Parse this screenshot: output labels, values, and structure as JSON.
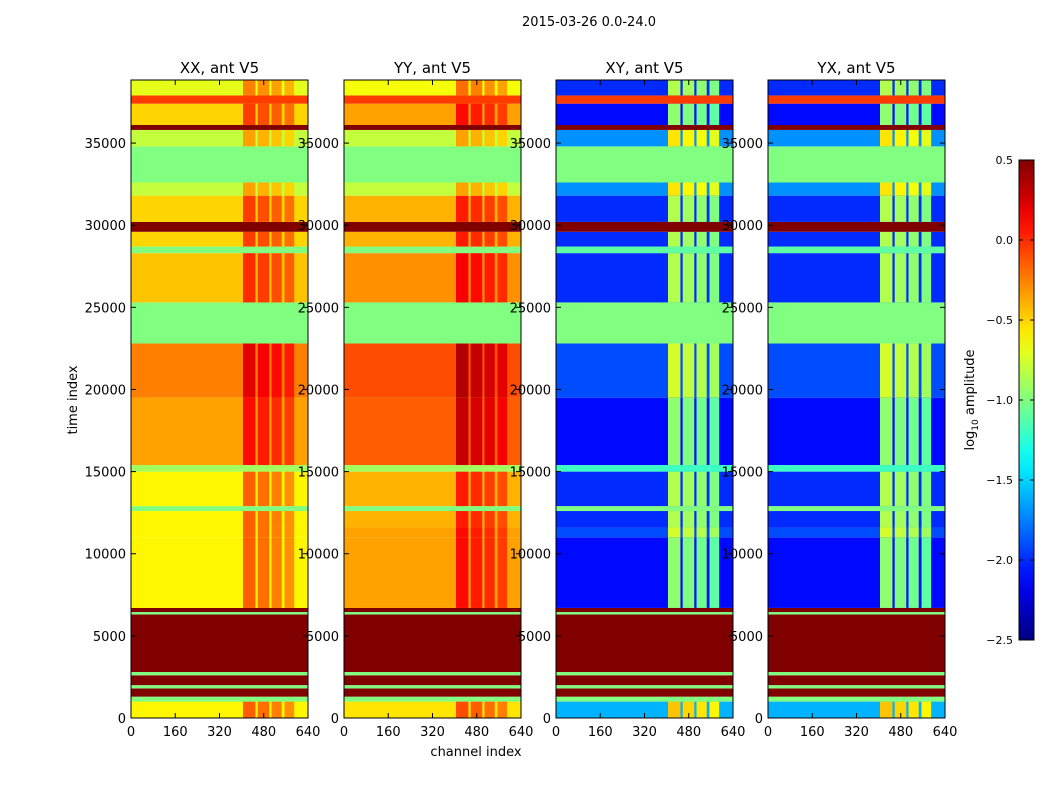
{
  "chart_data": {
    "type": "heatmap",
    "title": "2015-03-26 0.0-24.0",
    "xlabel": "channel index",
    "ylabel": "time index",
    "xlim": [
      0,
      640
    ],
    "ylim": [
      0,
      38840
    ],
    "xticks": [
      0,
      160,
      320,
      480,
      640
    ],
    "yticks": [
      0,
      5000,
      10000,
      15000,
      20000,
      25000,
      30000,
      35000
    ],
    "panels": [
      "XX, ant V5",
      "YY, ant V5",
      "XY, ant V5",
      "YX, ant V5"
    ],
    "colorbar": {
      "label_main": "log",
      "label_sub": "10",
      "label_rest": " amplitude",
      "range": [
        -2.5,
        0.5
      ],
      "ticks": [
        0.5,
        0.0,
        -0.5,
        -1.0,
        -1.5,
        -2.0,
        -2.5
      ],
      "tick_labels": [
        "0.5",
        "0.0",
        "−0.5",
        "−1.0",
        "−1.5",
        "−2.0",
        "−2.5"
      ],
      "colormap": "jet"
    },
    "rfi_channels": [
      [
        405,
        450
      ],
      [
        458,
        500
      ],
      [
        508,
        545
      ],
      [
        555,
        590
      ]
    ],
    "bands_note": "each band: time start, time end, log10 amplitude per panel [XX, YY, XY, YX], whether RFI channels are elevated",
    "bands": [
      {
        "t": [
          0,
          1000
        ],
        "v": [
          -0.6,
          -0.55,
          -1.6,
          -1.6
        ],
        "rfi": true
      },
      {
        "t": [
          1000,
          1300
        ],
        "v": [
          -1.0,
          -1.0,
          -1.0,
          -1.0
        ],
        "rfi": false
      },
      {
        "t": [
          1300,
          1800
        ],
        "v": [
          0.5,
          0.5,
          0.5,
          0.5
        ],
        "rfi": false
      },
      {
        "t": [
          1800,
          2000
        ],
        "v": [
          -1.0,
          -1.0,
          -1.0,
          -1.0
        ],
        "rfi": false
      },
      {
        "t": [
          2000,
          2600
        ],
        "v": [
          0.5,
          0.5,
          0.5,
          0.5
        ],
        "rfi": false
      },
      {
        "t": [
          2600,
          2800
        ],
        "v": [
          -1.0,
          -1.0,
          -1.0,
          -1.0
        ],
        "rfi": false
      },
      {
        "t": [
          2800,
          6300
        ],
        "v": [
          0.5,
          0.5,
          0.5,
          0.5
        ],
        "rfi": false
      },
      {
        "t": [
          6300,
          6450
        ],
        "v": [
          -1.0,
          -1.0,
          -1.0,
          -1.0
        ],
        "rfi": false
      },
      {
        "t": [
          6450,
          6700
        ],
        "v": [
          0.5,
          0.5,
          0.5,
          0.5
        ],
        "rfi": false
      },
      {
        "t": [
          6700,
          11000
        ],
        "v": [
          -0.6,
          -0.35,
          -2.1,
          -2.1
        ],
        "rfi": true
      },
      {
        "t": [
          11000,
          11600
        ],
        "v": [
          -0.6,
          -0.35,
          -1.9,
          -1.9
        ],
        "rfi": true
      },
      {
        "t": [
          11600,
          12600
        ],
        "v": [
          -0.6,
          -0.4,
          -2.0,
          -2.0
        ],
        "rfi": true
      },
      {
        "t": [
          12600,
          12900
        ],
        "v": [
          -1.0,
          -1.0,
          -1.0,
          -1.0
        ],
        "rfi": false
      },
      {
        "t": [
          12900,
          15000
        ],
        "v": [
          -0.6,
          -0.4,
          -2.0,
          -2.0
        ],
        "rfi": true
      },
      {
        "t": [
          15000,
          15400
        ],
        "v": [
          -0.9,
          -0.9,
          -1.2,
          -1.2
        ],
        "rfi": false
      },
      {
        "t": [
          15400,
          19500
        ],
        "v": [
          -0.35,
          -0.15,
          -2.1,
          -2.1
        ],
        "rfi": true
      },
      {
        "t": [
          19500,
          22800
        ],
        "v": [
          -0.25,
          -0.1,
          -1.9,
          -1.9
        ],
        "rfi": true
      },
      {
        "t": [
          22800,
          25300
        ],
        "v": [
          -1.0,
          -1.0,
          -1.0,
          -1.0
        ],
        "rfi": false
      },
      {
        "t": [
          25300,
          28300
        ],
        "v": [
          -0.45,
          -0.3,
          -2.0,
          -2.0
        ],
        "rfi": true
      },
      {
        "t": [
          28300,
          28700
        ],
        "v": [
          -1.0,
          -1.0,
          -1.1,
          -1.1
        ],
        "rfi": false
      },
      {
        "t": [
          28700,
          29600
        ],
        "v": [
          -0.5,
          -0.4,
          -2.0,
          -2.0
        ],
        "rfi": true
      },
      {
        "t": [
          29600,
          30200
        ],
        "v": [
          0.5,
          0.5,
          0.5,
          0.5
        ],
        "rfi": false
      },
      {
        "t": [
          30200,
          31800
        ],
        "v": [
          -0.5,
          -0.4,
          -2.0,
          -2.0
        ],
        "rfi": true
      },
      {
        "t": [
          31800,
          32600
        ],
        "v": [
          -0.8,
          -0.8,
          -1.7,
          -1.7
        ],
        "rfi": true
      },
      {
        "t": [
          32600,
          34800
        ],
        "v": [
          -1.0,
          -1.0,
          -1.0,
          -1.0
        ],
        "rfi": false
      },
      {
        "t": [
          34800,
          35800
        ],
        "v": [
          -0.8,
          -0.8,
          -1.7,
          -1.7
        ],
        "rfi": true
      },
      {
        "t": [
          35800,
          36100
        ],
        "v": [
          0.5,
          0.5,
          0.5,
          0.5
        ],
        "rfi": false
      },
      {
        "t": [
          36100,
          37400
        ],
        "v": [
          -0.5,
          -0.35,
          -2.1,
          -2.1
        ],
        "rfi": true
      },
      {
        "t": [
          37400,
          37900
        ],
        "v": [
          -0.05,
          -0.05,
          -0.05,
          -0.05
        ],
        "rfi": false
      },
      {
        "t": [
          37900,
          38840
        ],
        "v": [
          -0.7,
          -0.65,
          -2.0,
          -2.0
        ],
        "rfi": true
      }
    ]
  }
}
